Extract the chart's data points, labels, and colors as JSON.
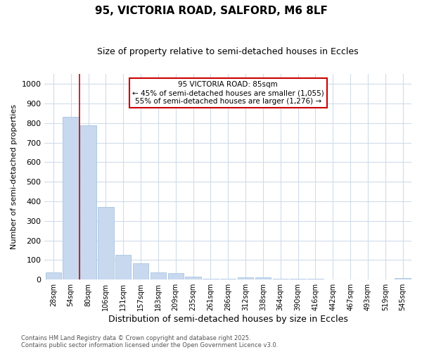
{
  "title": "95, VICTORIA ROAD, SALFORD, M6 8LF",
  "subtitle": "Size of property relative to semi-detached houses in Eccles",
  "xlabel": "Distribution of semi-detached houses by size in Eccles",
  "ylabel": "Number of semi-detached properties",
  "categories": [
    "28sqm",
    "54sqm",
    "80sqm",
    "106sqm",
    "131sqm",
    "157sqm",
    "183sqm",
    "209sqm",
    "235sqm",
    "261sqm",
    "286sqm",
    "312sqm",
    "338sqm",
    "364sqm",
    "390sqm",
    "416sqm",
    "442sqm",
    "467sqm",
    "493sqm",
    "519sqm",
    "545sqm"
  ],
  "values": [
    37,
    830,
    790,
    370,
    128,
    83,
    37,
    32,
    15,
    4,
    3,
    13,
    13,
    3,
    4,
    3,
    2,
    1,
    1,
    1,
    8
  ],
  "bar_color": "#c8d9ef",
  "bar_edge_color": "#a8c4e0",
  "vline_x_index": 1.5,
  "vline_color": "#cc0000",
  "annotation_title": "95 VICTORIA ROAD: 85sqm",
  "annotation_line1": "← 45% of semi-detached houses are smaller (1,055)",
  "annotation_line2": "55% of semi-detached houses are larger (1,276) →",
  "annotation_box_color": "#cc0000",
  "ylim": [
    0,
    1050
  ],
  "yticks": [
    0,
    100,
    200,
    300,
    400,
    500,
    600,
    700,
    800,
    900,
    1000
  ],
  "footer_line1": "Contains HM Land Registry data © Crown copyright and database right 2025.",
  "footer_line2": "Contains public sector information licensed under the Open Government Licence v3.0.",
  "background_color": "#ffffff",
  "plot_background_color": "#ffffff",
  "grid_color": "#d0dcea",
  "title_fontsize": 11,
  "subtitle_fontsize": 9
}
